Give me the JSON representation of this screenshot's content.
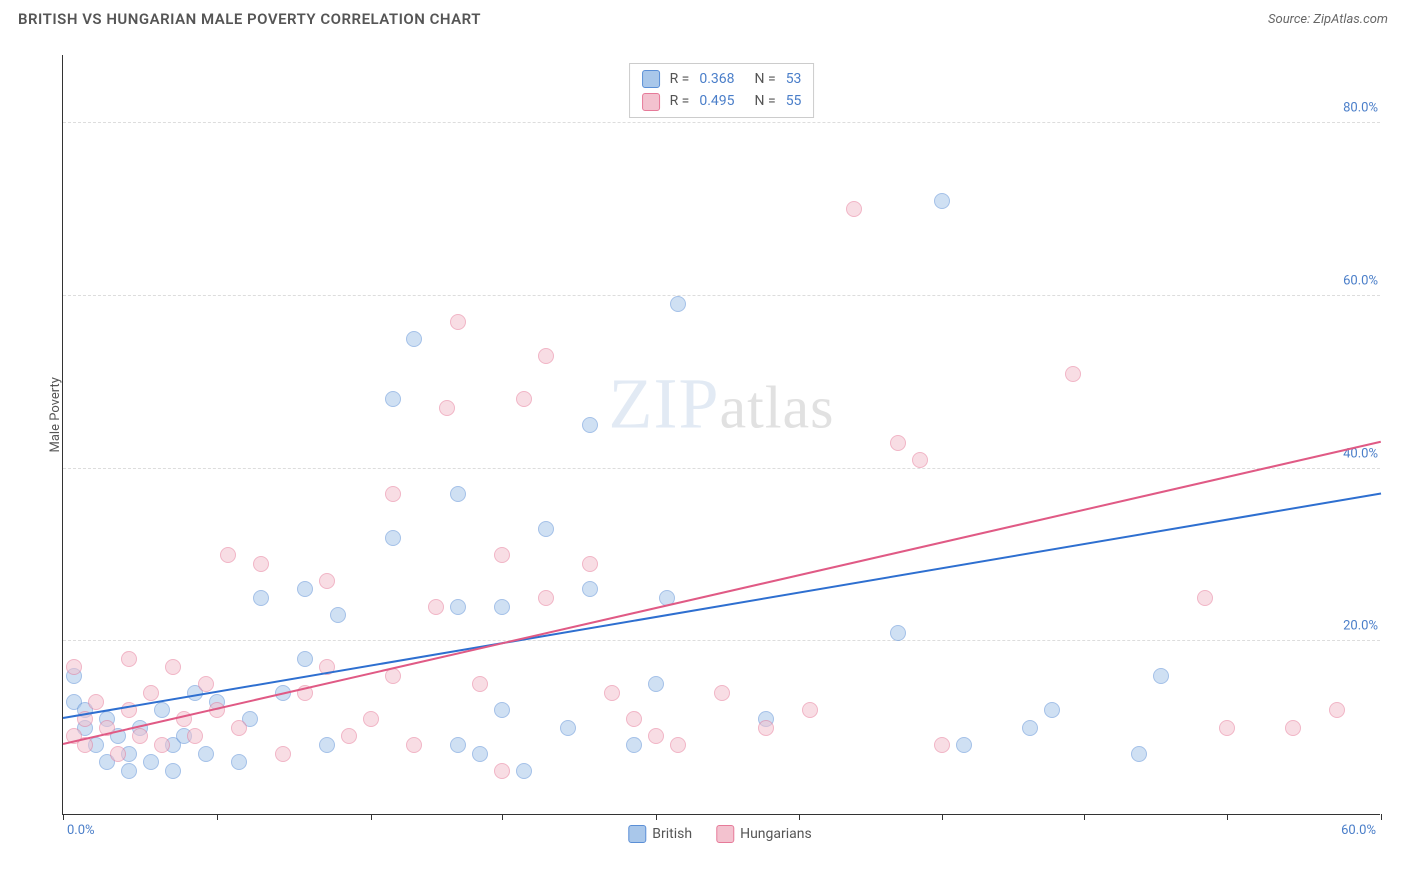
{
  "title": "BRITISH VS HUNGARIAN MALE POVERTY CORRELATION CHART",
  "source": "Source: ZipAtlas.com",
  "y_axis_label": "Male Poverty",
  "watermark": {
    "part1": "ZIP",
    "part2": "atlas"
  },
  "chart": {
    "type": "scatter",
    "xlim": [
      0,
      60
    ],
    "ylim": [
      0,
      88
    ],
    "x_ticks": [
      0,
      7,
      14,
      20,
      27,
      33.5,
      40,
      46.5,
      53,
      60
    ],
    "x_tick_labels_shown": {
      "0": "0.0%",
      "60": "60.0%"
    },
    "y_ticks": [
      20,
      40,
      60,
      80
    ],
    "y_tick_labels": [
      "20.0%",
      "40.0%",
      "60.0%",
      "80.0%"
    ],
    "background_color": "#ffffff",
    "grid_color": "#dddddd",
    "axis_color": "#333333",
    "tick_label_color": "#4a7ec9",
    "point_radius": 8,
    "point_opacity": 0.55,
    "series": [
      {
        "name": "British",
        "fill": "#a9c7ea",
        "stroke": "#5b8fd6",
        "trend_color": "#2e6fd0",
        "trend": {
          "x1": 0,
          "y1": 11,
          "x2": 60,
          "y2": 37
        },
        "R": "0.368",
        "N": "53",
        "points": [
          [
            0.5,
            13
          ],
          [
            0.5,
            16
          ],
          [
            1,
            10
          ],
          [
            1,
            12
          ],
          [
            1.5,
            8
          ],
          [
            2,
            6
          ],
          [
            2,
            11
          ],
          [
            2.5,
            9
          ],
          [
            3,
            5
          ],
          [
            3,
            7
          ],
          [
            3.5,
            10
          ],
          [
            4,
            6
          ],
          [
            4.5,
            12
          ],
          [
            5,
            5
          ],
          [
            5,
            8
          ],
          [
            5.5,
            9
          ],
          [
            6,
            14
          ],
          [
            6.5,
            7
          ],
          [
            7,
            13
          ],
          [
            8,
            6
          ],
          [
            8.5,
            11
          ],
          [
            9,
            25
          ],
          [
            10,
            14
          ],
          [
            11,
            18
          ],
          [
            11,
            26
          ],
          [
            12,
            8
          ],
          [
            12.5,
            23
          ],
          [
            15,
            32
          ],
          [
            15,
            48
          ],
          [
            16,
            55
          ],
          [
            18,
            8
          ],
          [
            18,
            24
          ],
          [
            18,
            37
          ],
          [
            19,
            7
          ],
          [
            20,
            12
          ],
          [
            20,
            24
          ],
          [
            21,
            5
          ],
          [
            22,
            33
          ],
          [
            23,
            10
          ],
          [
            24,
            26
          ],
          [
            24,
            45
          ],
          [
            26,
            8
          ],
          [
            27,
            15
          ],
          [
            27.5,
            25
          ],
          [
            28,
            59
          ],
          [
            32,
            11
          ],
          [
            38,
            21
          ],
          [
            40,
            71
          ],
          [
            41,
            8
          ],
          [
            44,
            10
          ],
          [
            45,
            12
          ],
          [
            49,
            7
          ],
          [
            50,
            16
          ]
        ]
      },
      {
        "name": "Hungarians",
        "fill": "#f3c2cf",
        "stroke": "#e67a99",
        "trend_color": "#e05a85",
        "trend": {
          "x1": 0,
          "y1": 8,
          "x2": 60,
          "y2": 43
        },
        "R": "0.495",
        "N": "55",
        "points": [
          [
            0.5,
            9
          ],
          [
            0.5,
            17
          ],
          [
            1,
            8
          ],
          [
            1,
            11
          ],
          [
            1.5,
            13
          ],
          [
            2,
            10
          ],
          [
            2.5,
            7
          ],
          [
            3,
            12
          ],
          [
            3,
            18
          ],
          [
            3.5,
            9
          ],
          [
            4,
            14
          ],
          [
            4.5,
            8
          ],
          [
            5,
            17
          ],
          [
            5.5,
            11
          ],
          [
            6,
            9
          ],
          [
            6.5,
            15
          ],
          [
            7,
            12
          ],
          [
            7.5,
            30
          ],
          [
            8,
            10
          ],
          [
            9,
            29
          ],
          [
            10,
            7
          ],
          [
            11,
            14
          ],
          [
            12,
            17
          ],
          [
            12,
            27
          ],
          [
            13,
            9
          ],
          [
            14,
            11
          ],
          [
            15,
            16
          ],
          [
            15,
            37
          ],
          [
            16,
            8
          ],
          [
            17,
            24
          ],
          [
            17.5,
            47
          ],
          [
            18,
            57
          ],
          [
            19,
            15
          ],
          [
            20,
            5
          ],
          [
            20,
            30
          ],
          [
            21,
            48
          ],
          [
            22,
            25
          ],
          [
            22,
            53
          ],
          [
            24,
            29
          ],
          [
            25,
            14
          ],
          [
            26,
            11
          ],
          [
            27,
            9
          ],
          [
            28,
            8
          ],
          [
            30,
            14
          ],
          [
            32,
            10
          ],
          [
            34,
            12
          ],
          [
            36,
            70
          ],
          [
            38,
            43
          ],
          [
            39,
            41
          ],
          [
            40,
            8
          ],
          [
            46,
            51
          ],
          [
            52,
            25
          ],
          [
            53,
            10
          ],
          [
            56,
            10
          ],
          [
            58,
            12
          ]
        ]
      }
    ]
  },
  "stats_box": {
    "rows": [
      {
        "swatch_fill": "#a9c7ea",
        "swatch_stroke": "#5b8fd6",
        "R_label": "R =",
        "R": "0.368",
        "N_label": "N =",
        "N": "53"
      },
      {
        "swatch_fill": "#f3c2cf",
        "swatch_stroke": "#e67a99",
        "R_label": "R =",
        "R": "0.495",
        "N_label": "N =",
        "N": "55"
      }
    ]
  },
  "bottom_legend": [
    {
      "fill": "#a9c7ea",
      "stroke": "#5b8fd6",
      "label": "British"
    },
    {
      "fill": "#f3c2cf",
      "stroke": "#e67a99",
      "label": "Hungarians"
    }
  ]
}
